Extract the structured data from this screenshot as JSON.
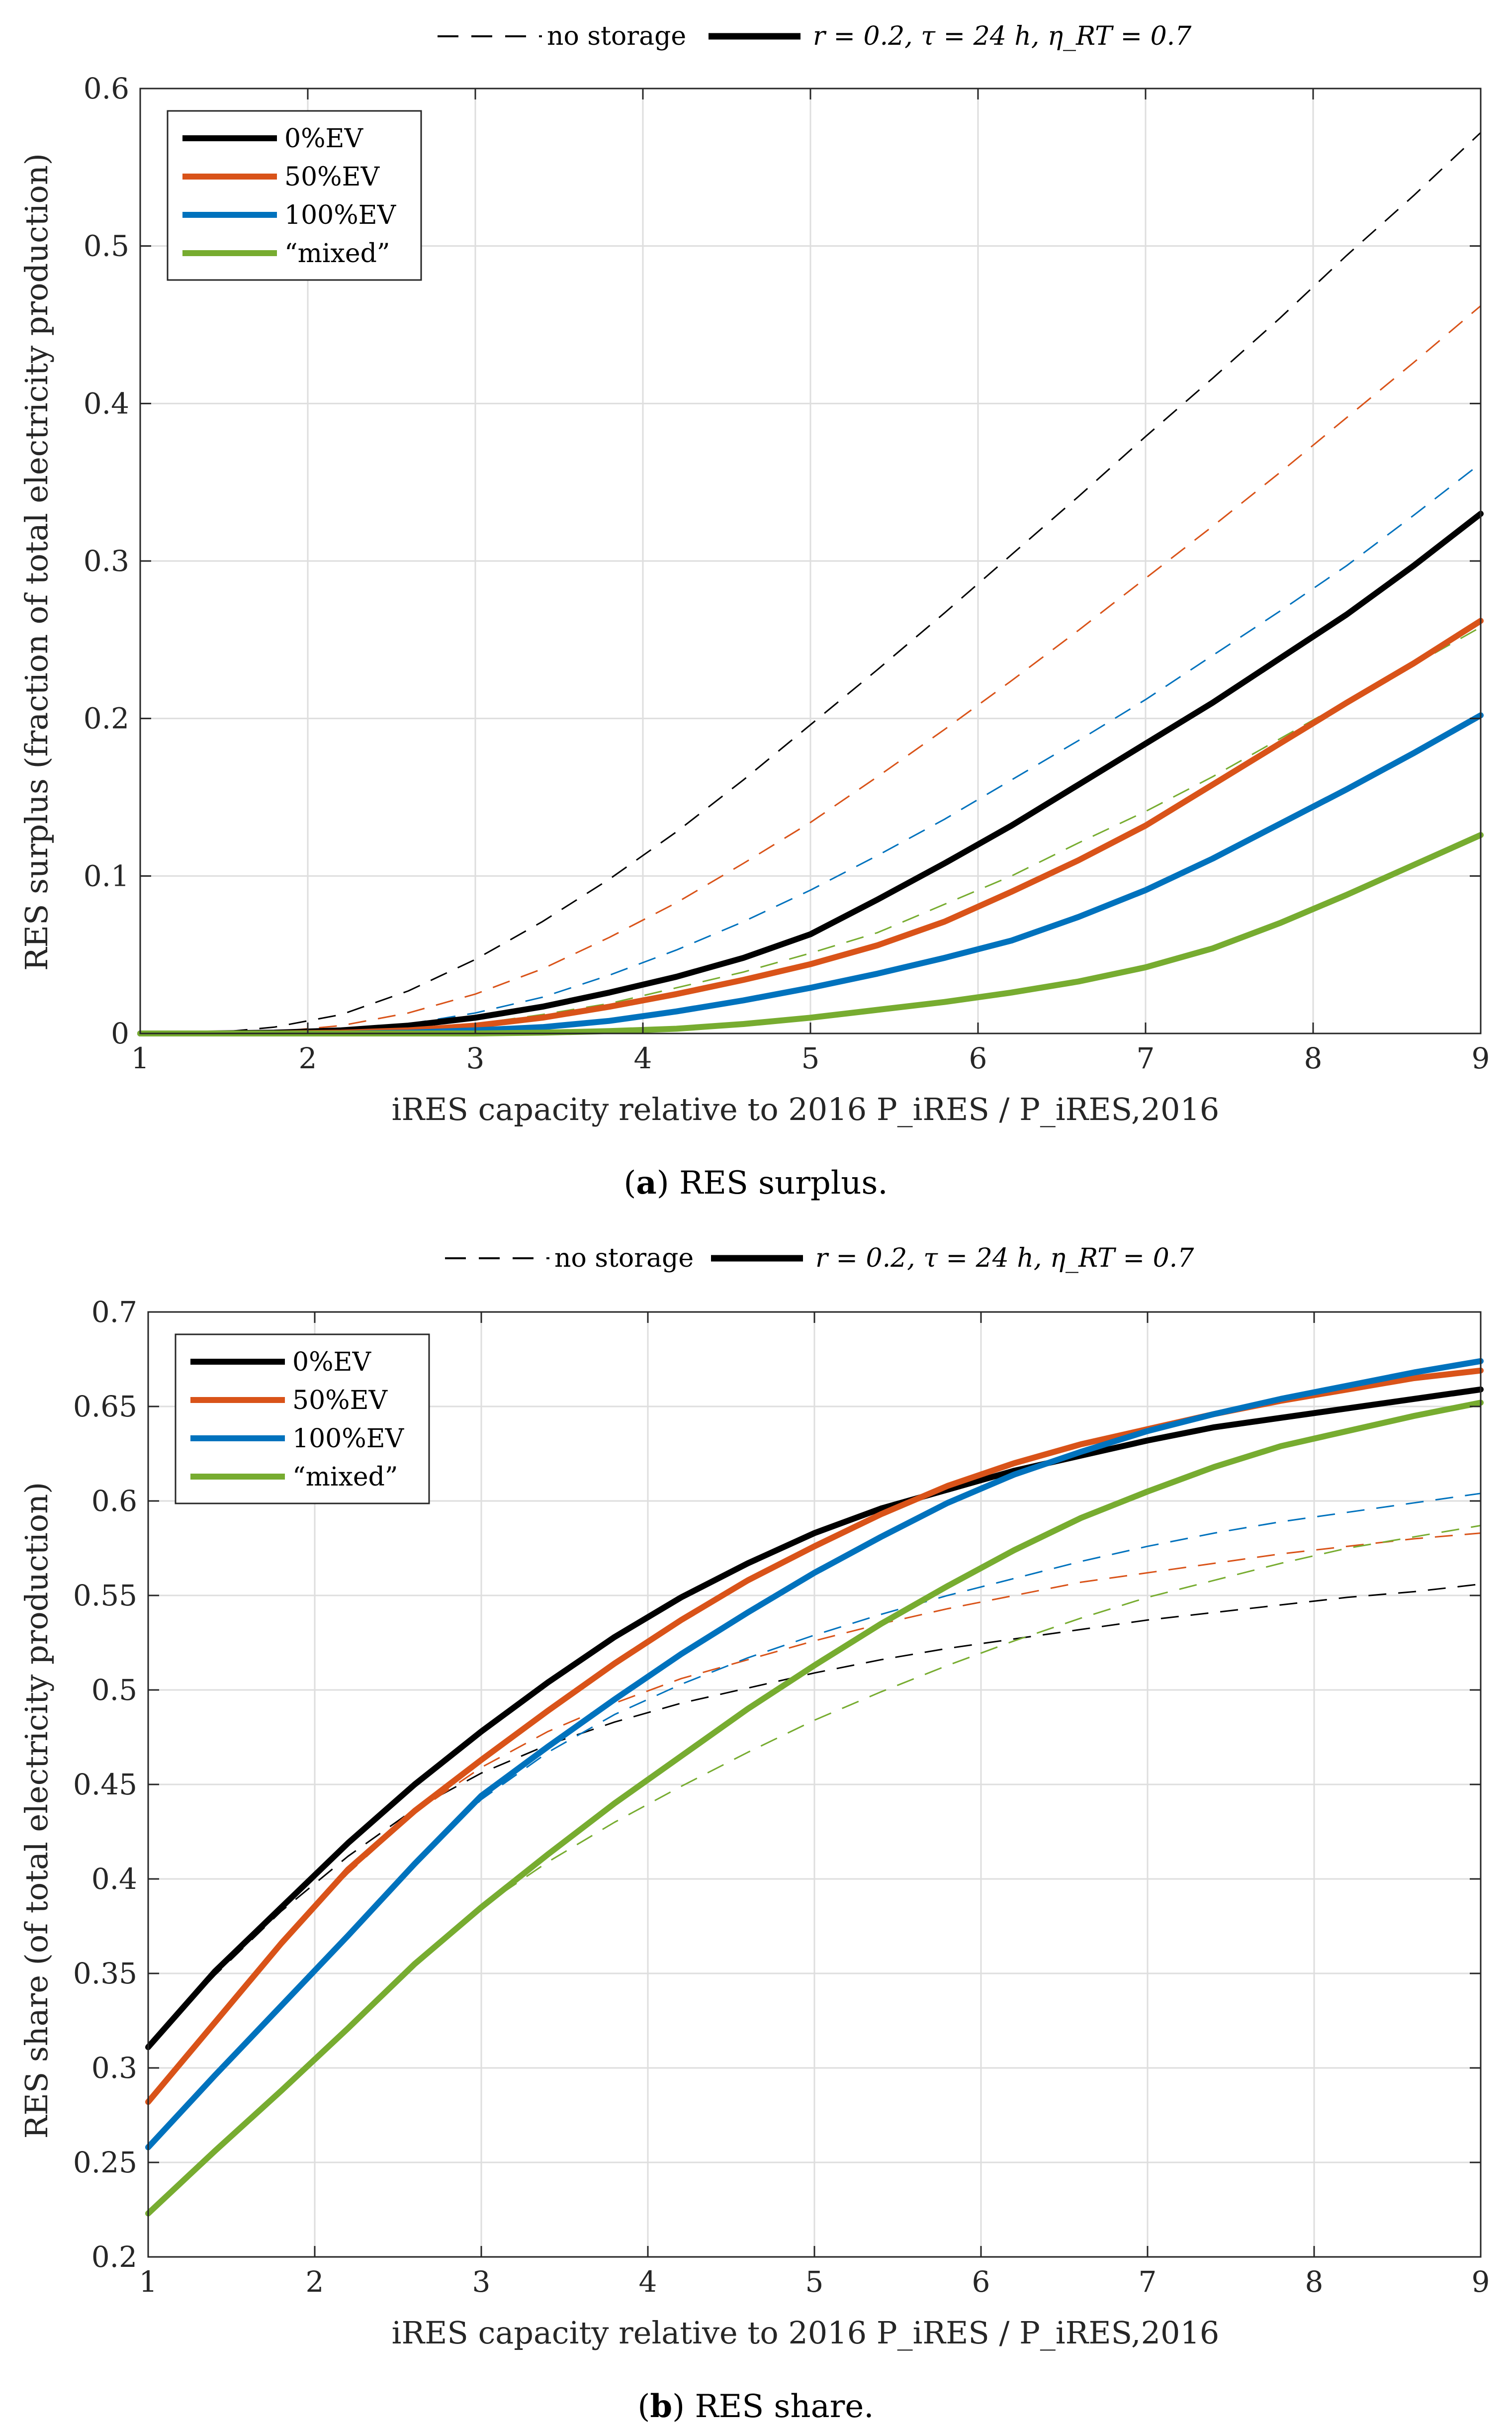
{
  "top_legend": {
    "no_storage": "no storage",
    "with_storage": "r = 0.2, τ = 24 h, η_RT = 0.7"
  },
  "colors": {
    "0%EV": "#000000",
    "50%EV": "#d95319",
    "100%EV": "#0072bd",
    "mixed": "#77ac30",
    "grid": "#dedede",
    "axis": "#262626"
  },
  "chart_data": [
    {
      "type": "line",
      "caption_label": "a",
      "caption_text": "RES surplus.",
      "xlabel": "iRES capacity relative to 2016 P_iRES / P_iRES,2016",
      "ylabel": "RES surplus (fraction of total electricity production)",
      "xlim": [
        1,
        9
      ],
      "ylim": [
        0,
        0.6
      ],
      "xticks": [
        1,
        2,
        3,
        4,
        5,
        6,
        7,
        8,
        9
      ],
      "yticks": [
        0,
        0.1,
        0.2,
        0.3,
        0.4,
        0.5,
        0.6
      ],
      "ytick_labels": [
        "0",
        "0.1",
        "0.2",
        "0.3",
        "0.4",
        "0.5",
        "0.6"
      ],
      "grid": true,
      "legend": [
        "0%EV",
        "50%EV",
        "100%EV",
        "“mixed”"
      ],
      "x": [
        1,
        1.4,
        1.8,
        2.2,
        2.6,
        3,
        3.4,
        3.8,
        4.2,
        4.6,
        5,
        5.4,
        5.8,
        6.2,
        6.6,
        7,
        7.4,
        7.8,
        8.2,
        8.6,
        9
      ],
      "series": [
        {
          "name": "0%EV",
          "style": "storage",
          "key": "0%EV",
          "values": [
            0,
            0,
            0.0005,
            0.002,
            0.005,
            0.01,
            0.017,
            0.026,
            0.036,
            0.048,
            0.063,
            0.085,
            0.108,
            0.132,
            0.158,
            0.184,
            0.21,
            0.238,
            0.266,
            0.297,
            0.33
          ]
        },
        {
          "name": "50%EV",
          "style": "storage",
          "key": "50%EV",
          "values": [
            0,
            0,
            0,
            0.0005,
            0.002,
            0.005,
            0.01,
            0.017,
            0.025,
            0.034,
            0.044,
            0.056,
            0.071,
            0.09,
            0.11,
            0.132,
            0.158,
            0.184,
            0.21,
            0.235,
            0.262
          ]
        },
        {
          "name": "100%EV",
          "style": "storage",
          "key": "100%EV",
          "values": [
            0,
            0,
            0,
            0,
            0.0005,
            0.002,
            0.004,
            0.008,
            0.014,
            0.021,
            0.029,
            0.038,
            0.048,
            0.059,
            0.074,
            0.091,
            0.111,
            0.133,
            0.155,
            0.178,
            0.202
          ]
        },
        {
          "name": "“mixed”",
          "style": "storage",
          "key": "mixed",
          "values": [
            0,
            0,
            0,
            0,
            0,
            0,
            0.0005,
            0.0015,
            0.003,
            0.006,
            0.01,
            0.015,
            0.02,
            0.026,
            0.033,
            0.042,
            0.054,
            0.07,
            0.088,
            0.107,
            0.126
          ]
        },
        {
          "name": "0%EV no storage",
          "style": "nostorage",
          "key": "0%EV",
          "values": [
            0,
            0,
            0.004,
            0.012,
            0.027,
            0.047,
            0.071,
            0.098,
            0.128,
            0.161,
            0.196,
            0.231,
            0.267,
            0.304,
            0.341,
            0.379,
            0.416,
            0.454,
            0.494,
            0.532,
            0.572
          ]
        },
        {
          "name": "50%EV no storage",
          "style": "nostorage",
          "key": "50%EV",
          "values": [
            0,
            0,
            0.001,
            0.005,
            0.013,
            0.025,
            0.041,
            0.061,
            0.083,
            0.108,
            0.134,
            0.163,
            0.193,
            0.224,
            0.256,
            0.289,
            0.322,
            0.356,
            0.391,
            0.426,
            0.462
          ]
        },
        {
          "name": "100%EV no storage",
          "style": "nostorage",
          "key": "100%EV",
          "values": [
            0,
            0,
            0,
            0.002,
            0.006,
            0.013,
            0.023,
            0.037,
            0.053,
            0.071,
            0.091,
            0.113,
            0.136,
            0.161,
            0.186,
            0.212,
            0.24,
            0.268,
            0.297,
            0.329,
            0.362
          ]
        },
        {
          "name": "“mixed” no storage",
          "style": "nostorage",
          "key": "mixed",
          "values": [
            0,
            0,
            0,
            0.0005,
            0.002,
            0.006,
            0.012,
            0.019,
            0.029,
            0.039,
            0.051,
            0.064,
            0.082,
            0.1,
            0.121,
            0.141,
            0.163,
            0.187,
            0.211,
            0.234,
            0.258
          ]
        }
      ]
    },
    {
      "type": "line",
      "caption_label": "b",
      "caption_text": "RES share.",
      "xlabel": "iRES capacity relative to 2016 P_iRES / P_iRES,2016",
      "ylabel": "RES share (of total electricity production)",
      "xlim": [
        1,
        9
      ],
      "ylim": [
        0.2,
        0.7
      ],
      "xticks": [
        1,
        2,
        3,
        4,
        5,
        6,
        7,
        8,
        9
      ],
      "yticks": [
        0.2,
        0.25,
        0.3,
        0.35,
        0.4,
        0.45,
        0.5,
        0.55,
        0.6,
        0.65,
        0.7
      ],
      "ytick_labels": [
        "0.2",
        "0.25",
        "0.3",
        "0.35",
        "0.4",
        "0.45",
        "0.5",
        "0.55",
        "0.6",
        "0.65",
        "0.7"
      ],
      "grid": true,
      "legend": [
        "0%EV",
        "50%EV",
        "100%EV",
        "“mixed”"
      ],
      "x": [
        1,
        1.4,
        1.8,
        2.2,
        2.6,
        3,
        3.4,
        3.8,
        4.2,
        4.6,
        5,
        5.4,
        5.8,
        6.2,
        6.6,
        7,
        7.4,
        7.8,
        8.2,
        8.6,
        9
      ],
      "series": [
        {
          "name": "0%EV",
          "style": "storage",
          "key": "0%EV",
          "values": [
            0.311,
            0.351,
            0.385,
            0.419,
            0.45,
            0.478,
            0.504,
            0.528,
            0.549,
            0.567,
            0.583,
            0.596,
            0.606,
            0.616,
            0.624,
            0.632,
            0.639,
            0.644,
            0.649,
            0.654,
            0.659
          ]
        },
        {
          "name": "50%EV",
          "style": "storage",
          "key": "50%EV",
          "values": [
            0.282,
            0.324,
            0.366,
            0.405,
            0.436,
            0.463,
            0.489,
            0.514,
            0.537,
            0.558,
            0.576,
            0.593,
            0.608,
            0.62,
            0.63,
            0.638,
            0.646,
            0.653,
            0.659,
            0.665,
            0.669
          ]
        },
        {
          "name": "100%EV",
          "style": "storage",
          "key": "100%EV",
          "values": [
            0.258,
            0.296,
            0.333,
            0.37,
            0.408,
            0.444,
            0.47,
            0.495,
            0.519,
            0.541,
            0.562,
            0.581,
            0.599,
            0.614,
            0.626,
            0.637,
            0.646,
            0.654,
            0.661,
            0.668,
            0.674
          ]
        },
        {
          "name": "“mixed”",
          "style": "storage",
          "key": "mixed",
          "values": [
            0.223,
            0.256,
            0.288,
            0.321,
            0.355,
            0.385,
            0.413,
            0.44,
            0.465,
            0.49,
            0.513,
            0.535,
            0.555,
            0.574,
            0.591,
            0.605,
            0.618,
            0.629,
            0.637,
            0.645,
            0.652
          ]
        },
        {
          "name": "0%EV no storage",
          "style": "nostorage",
          "key": "0%EV",
          "values": [
            0.311,
            0.349,
            0.383,
            0.412,
            0.437,
            0.456,
            0.471,
            0.483,
            0.493,
            0.501,
            0.509,
            0.516,
            0.522,
            0.527,
            0.532,
            0.537,
            0.541,
            0.545,
            0.549,
            0.552,
            0.556
          ]
        },
        {
          "name": "50%EV no storage",
          "style": "nostorage",
          "key": "50%EV",
          "values": [
            0.282,
            0.324,
            0.366,
            0.403,
            0.435,
            0.459,
            0.478,
            0.493,
            0.506,
            0.516,
            0.526,
            0.535,
            0.543,
            0.55,
            0.557,
            0.562,
            0.567,
            0.572,
            0.576,
            0.58,
            0.583
          ]
        },
        {
          "name": "100%EV no storage",
          "style": "nostorage",
          "key": "100%EV",
          "values": [
            0.258,
            0.296,
            0.333,
            0.37,
            0.408,
            0.442,
            0.467,
            0.487,
            0.503,
            0.517,
            0.529,
            0.54,
            0.55,
            0.559,
            0.568,
            0.576,
            0.583,
            0.589,
            0.594,
            0.599,
            0.604
          ]
        },
        {
          "name": "“mixed” no storage",
          "style": "nostorage",
          "key": "mixed",
          "values": [
            0.223,
            0.256,
            0.288,
            0.321,
            0.355,
            0.385,
            0.409,
            0.43,
            0.449,
            0.467,
            0.484,
            0.499,
            0.513,
            0.526,
            0.538,
            0.549,
            0.558,
            0.567,
            0.575,
            0.581,
            0.587
          ]
        }
      ]
    }
  ]
}
